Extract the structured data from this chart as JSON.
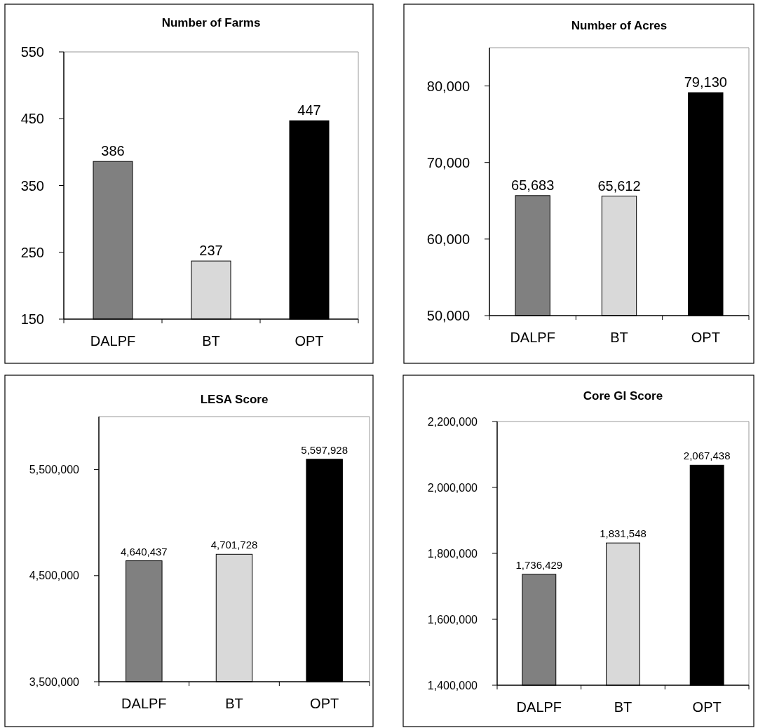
{
  "chart_data": [
    {
      "type": "bar",
      "title": "Number of Farms",
      "categories": [
        "DALPF",
        "BT",
        "OPT"
      ],
      "values": [
        386,
        237,
        447
      ],
      "colors": [
        "#808080",
        "#d9d9d9",
        "#000000"
      ],
      "ylim": [
        150,
        550
      ],
      "yticks": [
        150,
        250,
        350,
        450,
        550
      ],
      "data_labels": true
    },
    {
      "type": "bar",
      "title": "Number of Acres",
      "categories": [
        "DALPF",
        "BT",
        "OPT"
      ],
      "values": [
        65683,
        65612,
        79130
      ],
      "value_labels": [
        "65,683",
        "65,612",
        "79,130"
      ],
      "colors": [
        "#808080",
        "#d9d9d9",
        "#000000"
      ],
      "ylim": [
        50000,
        85000
      ],
      "yticks": [
        {
          "value": 50000,
          "label": "50,000"
        },
        {
          "value": 60000,
          "label": "60,000"
        },
        {
          "value": 70000,
          "label": "70,000"
        },
        {
          "value": 80000,
          "label": "80,000"
        }
      ]
    },
    {
      "type": "bar",
      "title": "LESA Score",
      "categories": [
        "DALPF",
        "BT",
        "OPT"
      ],
      "values": [
        4640437,
        4701728,
        5597928
      ],
      "value_labels": [
        "4,640,437",
        "4,701,728",
        "5,597,928"
      ],
      "colors": [
        "#808080",
        "#d9d9d9",
        "#000000"
      ],
      "ylim": [
        3500000,
        6000000
      ],
      "yticks": [
        {
          "value": 3500000,
          "label": "3,500,000"
        },
        {
          "value": 4500000,
          "label": "4,500,000"
        },
        {
          "value": 5500000,
          "label": "5,500,000"
        }
      ]
    },
    {
      "type": "bar",
      "title": "Core GI Score",
      "categories": [
        "DALPF",
        "BT",
        "OPT"
      ],
      "values": [
        1736429,
        1831548,
        2067438
      ],
      "value_labels": [
        "1,736,429",
        "1,831,548",
        "2,067,438"
      ],
      "colors": [
        "#808080",
        "#d9d9d9",
        "#000000"
      ],
      "ylim": [
        1400000,
        2200000
      ],
      "yticks": [
        {
          "value": 1400000,
          "label": "1,400,000"
        },
        {
          "value": 1600000,
          "label": "1,600,000"
        },
        {
          "value": 1800000,
          "label": "1,800,000"
        },
        {
          "value": 2000000,
          "label": "2,000,000"
        },
        {
          "value": 2200000,
          "label": "2,200,000"
        }
      ]
    }
  ]
}
